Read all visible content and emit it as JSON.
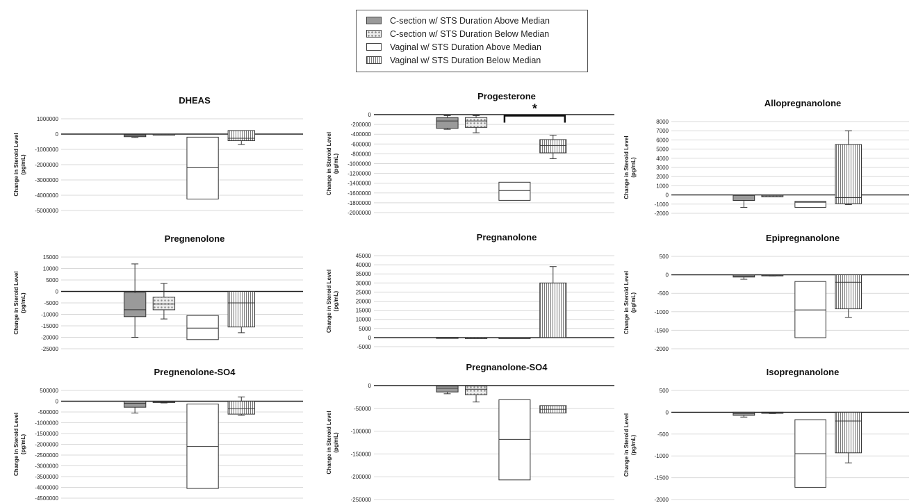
{
  "legend": [
    {
      "label": "C-section w/ STS Duration Above Median",
      "pattern": "gray"
    },
    {
      "label": "C-section w/ STS Duration Below Median",
      "pattern": "dots"
    },
    {
      "label": "Vaginal w/ STS Duration Above Median",
      "pattern": "white"
    },
    {
      "label": "Vaginal w/ STS Duration Below Median",
      "pattern": "vlines"
    }
  ],
  "colors": {
    "gray_fill": "#9a9a9a",
    "grid": "#d9d9d9",
    "axis": "#222222",
    "box_stroke": "#333333"
  },
  "chart_data": [
    {
      "type": "box",
      "title": "DHEAS",
      "ylabel": "Change in Steroid Level",
      "yunit": "(pg/mL)",
      "ylim": [
        -5000000,
        1000000
      ],
      "yticks": [
        1000000,
        0,
        -1000000,
        -2000000,
        -3000000,
        -4000000,
        -5000000
      ],
      "yticklabels": [
        "1000000",
        "0",
        "-1000000",
        "-2000000",
        "-3000000",
        "-4000000",
        "-5000000"
      ],
      "boxes": [
        {
          "whisker_low": -220000,
          "q1": -170000,
          "median": -80000,
          "q3": -20000,
          "whisker_high": -20000
        },
        {
          "whisker_low": -40000,
          "q1": -30000,
          "median": -15000,
          "q3": 0,
          "whisker_high": 0
        },
        {
          "whisker_low": -4250000,
          "q1": -4250000,
          "median": -2200000,
          "q3": -200000,
          "whisker_high": -200000
        },
        {
          "whisker_low": -680000,
          "q1": -430000,
          "median": -270000,
          "q3": 230000,
          "whisker_high": 230000
        }
      ]
    },
    {
      "type": "box",
      "title": "Progesterone",
      "ylabel": "Change in Steroid Level",
      "yunit": "(pg/mL)",
      "ylim": [
        -2000000,
        0
      ],
      "yticks": [
        0,
        -200000,
        -400000,
        -600000,
        -800000,
        -1000000,
        -1200000,
        -1400000,
        -1600000,
        -1800000,
        -2000000
      ],
      "yticklabels": [
        "0",
        "-200000",
        "-400000",
        "-600000",
        "-800000",
        "-1000000",
        "-1200000",
        "-1400000",
        "-1600000",
        "-1800000",
        "-2000000"
      ],
      "significance": {
        "label": "*",
        "from_box": 2,
        "to_box": 3,
        "y": -50000
      },
      "boxes": [
        {
          "whisker_low": -300000,
          "q1": -280000,
          "median": -130000,
          "q3": -60000,
          "whisker_high": -20000
        },
        {
          "whisker_low": -370000,
          "q1": -260000,
          "median": -130000,
          "q3": -60000,
          "whisker_high": -20000
        },
        {
          "whisker_low": -1750000,
          "q1": -1750000,
          "median": -1550000,
          "q3": -1380000,
          "whisker_high": -1380000
        },
        {
          "whisker_low": -900000,
          "q1": -780000,
          "median": -630000,
          "q3": -510000,
          "whisker_high": -420000
        }
      ]
    },
    {
      "type": "box",
      "title": "Allopregnanolone",
      "ylabel": "Change in Steroid Level",
      "yunit": "(pg/mL)",
      "ylim": [
        -2000,
        8000
      ],
      "yticks": [
        8000,
        7000,
        6000,
        5000,
        4000,
        3000,
        2000,
        1000,
        0,
        -1000,
        -2000
      ],
      "yticklabels": [
        "8000",
        "7000",
        "6000",
        "5000",
        "4000",
        "3000",
        "2000",
        "1000",
        "0",
        "-1000",
        "-2000"
      ],
      "boxes": [
        {
          "whisker_low": -1350.0,
          "q1": -600,
          "median": -50,
          "q3": 0,
          "whisker_high": 0
        },
        {
          "whisker_low": -200,
          "q1": -200,
          "median": -100,
          "q3": 0,
          "whisker_high": 0
        },
        {
          "whisker_low": -1350,
          "q1": -1350,
          "median": -800,
          "q3": -700,
          "whisker_high": -700
        },
        {
          "whisker_low": -1050,
          "q1": -950,
          "median": -300,
          "q3": 5500,
          "whisker_high": 7000
        }
      ]
    },
    {
      "type": "box",
      "title": "Pregnenolone",
      "ylabel": "Change in Steroid Level",
      "yunit": "(pg/mL)",
      "ylim": [
        -25000,
        15000
      ],
      "yticks": [
        15000,
        10000,
        5000,
        0,
        -5000,
        -10000,
        -15000,
        -20000,
        -25000
      ],
      "yticklabels": [
        "15000",
        "10000",
        "5000",
        "0",
        "-5000",
        "-10000",
        "-15000",
        "-20000",
        "-25000"
      ],
      "boxes": [
        {
          "whisker_low": -20000,
          "q1": -11000,
          "median": -8000,
          "q3": -500,
          "whisker_high": 12000
        },
        {
          "whisker_low": -12000,
          "q1": -8000,
          "median": -5500,
          "q3": -2500,
          "whisker_high": 3500
        },
        {
          "whisker_low": -21000,
          "q1": -21000,
          "median": -16000,
          "q3": -10500,
          "whisker_high": -10500
        },
        {
          "whisker_low": -18000,
          "q1": -15500,
          "median": -5000,
          "q3": 0,
          "whisker_high": 0
        }
      ]
    },
    {
      "type": "box",
      "title": "Pregnanolone",
      "ylabel": "Change in Steroid Level",
      "yunit": "(pg/mL)",
      "ylim": [
        -5000,
        45000
      ],
      "yticks": [
        45000,
        40000,
        35000,
        30000,
        25000,
        20000,
        15000,
        10000,
        5000,
        0,
        -5000
      ],
      "yticklabels": [
        "45000",
        "40000",
        "35000",
        "30000",
        "25000",
        "20000",
        "15000",
        "10000",
        "5000",
        "0",
        "-5000"
      ],
      "boxes": [
        {
          "whisker_low": -100,
          "q1": -100,
          "median": 0,
          "q3": 100,
          "whisker_high": 100
        },
        {
          "whisker_low": -200,
          "q1": -200,
          "median": -100,
          "q3": 0,
          "whisker_high": 0
        },
        {
          "whisker_low": -200,
          "q1": -200,
          "median": -100,
          "q3": 0,
          "whisker_high": 0
        },
        {
          "whisker_low": 0,
          "q1": 0,
          "median": 0,
          "q3": 30000,
          "whisker_high": 39000
        }
      ]
    },
    {
      "type": "box",
      "title": "Epipregnanolone",
      "ylabel": "Change in Steroid Level",
      "yunit": "(pg/mL)",
      "ylim": [
        -2000,
        500
      ],
      "yticks": [
        500,
        0,
        -500,
        -1000,
        -1500,
        -2000
      ],
      "yticklabels": [
        "500",
        "0",
        "-500",
        "-1000",
        "-1500",
        "-2000"
      ],
      "boxes": [
        {
          "whisker_low": -120,
          "q1": -60,
          "median": -30,
          "q3": 0,
          "whisker_high": 0
        },
        {
          "whisker_low": -30,
          "q1": -20,
          "median": -10,
          "q3": 0,
          "whisker_high": 0
        },
        {
          "whisker_low": -1700,
          "q1": -1700,
          "median": -950,
          "q3": -180,
          "whisker_high": -180
        },
        {
          "whisker_low": -1150,
          "q1": -920,
          "median": -200,
          "q3": 0,
          "whisker_high": 0
        }
      ]
    },
    {
      "type": "box",
      "title": "Pregnenolone-SO4",
      "ylabel": "Change in Steroid Level",
      "yunit": "(pg/mL)",
      "ylim": [
        -4500000,
        500000
      ],
      "yticks": [
        500000,
        0,
        -500000,
        -1000000,
        -1500000,
        -2000000,
        -2500000,
        -3000000,
        -3500000,
        -4000000,
        -4500000
      ],
      "yticklabels": [
        "500000",
        "0",
        "-500000",
        "-1000000",
        "-1500000",
        "-2000000",
        "-2500000",
        "-3000000",
        "-3500000",
        "-4000000",
        "-4500000"
      ],
      "boxes": [
        {
          "whisker_low": -550000,
          "q1": -280000,
          "median": -100000,
          "q3": 0,
          "whisker_high": 0
        },
        {
          "whisker_low": -80000,
          "q1": -60000,
          "median": -30000,
          "q3": 0,
          "whisker_high": 0
        },
        {
          "whisker_low": -4050000,
          "q1": -4050000,
          "median": -2100000,
          "q3": -130000,
          "whisker_high": -130000
        },
        {
          "whisker_low": -650000,
          "q1": -600000,
          "median": -350000,
          "q3": 0,
          "whisker_high": 200000
        }
      ]
    },
    {
      "type": "box",
      "title": "Pregnanolone-SO4",
      "ylabel": "Change in Steroid Level",
      "yunit": "(pg/mL)",
      "ylim": [
        -250000,
        0
      ],
      "yticks": [
        0,
        -50000,
        -100000,
        -150000,
        -200000,
        -250000
      ],
      "yticklabels": [
        "0",
        "-50000",
        "-100000",
        "-150000",
        "-200000",
        "-250000"
      ],
      "boxes": [
        {
          "whisker_low": -18000,
          "q1": -14000,
          "median": -6000,
          "q3": -1000,
          "whisker_high": -1000
        },
        {
          "whisker_low": -36000,
          "q1": -20000,
          "median": -8000,
          "q3": -1000,
          "whisker_high": -1000
        },
        {
          "whisker_low": -207000,
          "q1": -207000,
          "median": -118000,
          "q3": -31000,
          "whisker_high": -31000
        },
        {
          "whisker_low": -60000,
          "q1": -60000,
          "median": -52000,
          "q3": -44000,
          "whisker_high": -44000
        }
      ]
    },
    {
      "type": "box",
      "title": "Isopregnanolone",
      "ylabel": "Change in Steroid Level",
      "yunit": "(pg/mL)",
      "ylim": [
        -2000,
        500
      ],
      "yticks": [
        500,
        0,
        -500,
        -1000,
        -1500,
        -2000
      ],
      "yticklabels": [
        "500",
        "0",
        "-500",
        "-1000",
        "-1500",
        "-2000"
      ],
      "boxes": [
        {
          "whisker_low": -110,
          "q1": -70,
          "median": -30,
          "q3": 0,
          "whisker_high": 0
        },
        {
          "whisker_low": -30,
          "q1": -20,
          "median": -10,
          "q3": 0,
          "whisker_high": 0
        },
        {
          "whisker_low": -1720,
          "q1": -1720,
          "median": -950,
          "q3": -170,
          "whisker_high": -170
        },
        {
          "whisker_low": -1160,
          "q1": -930,
          "median": -200,
          "q3": 0,
          "whisker_high": 0
        }
      ]
    }
  ]
}
